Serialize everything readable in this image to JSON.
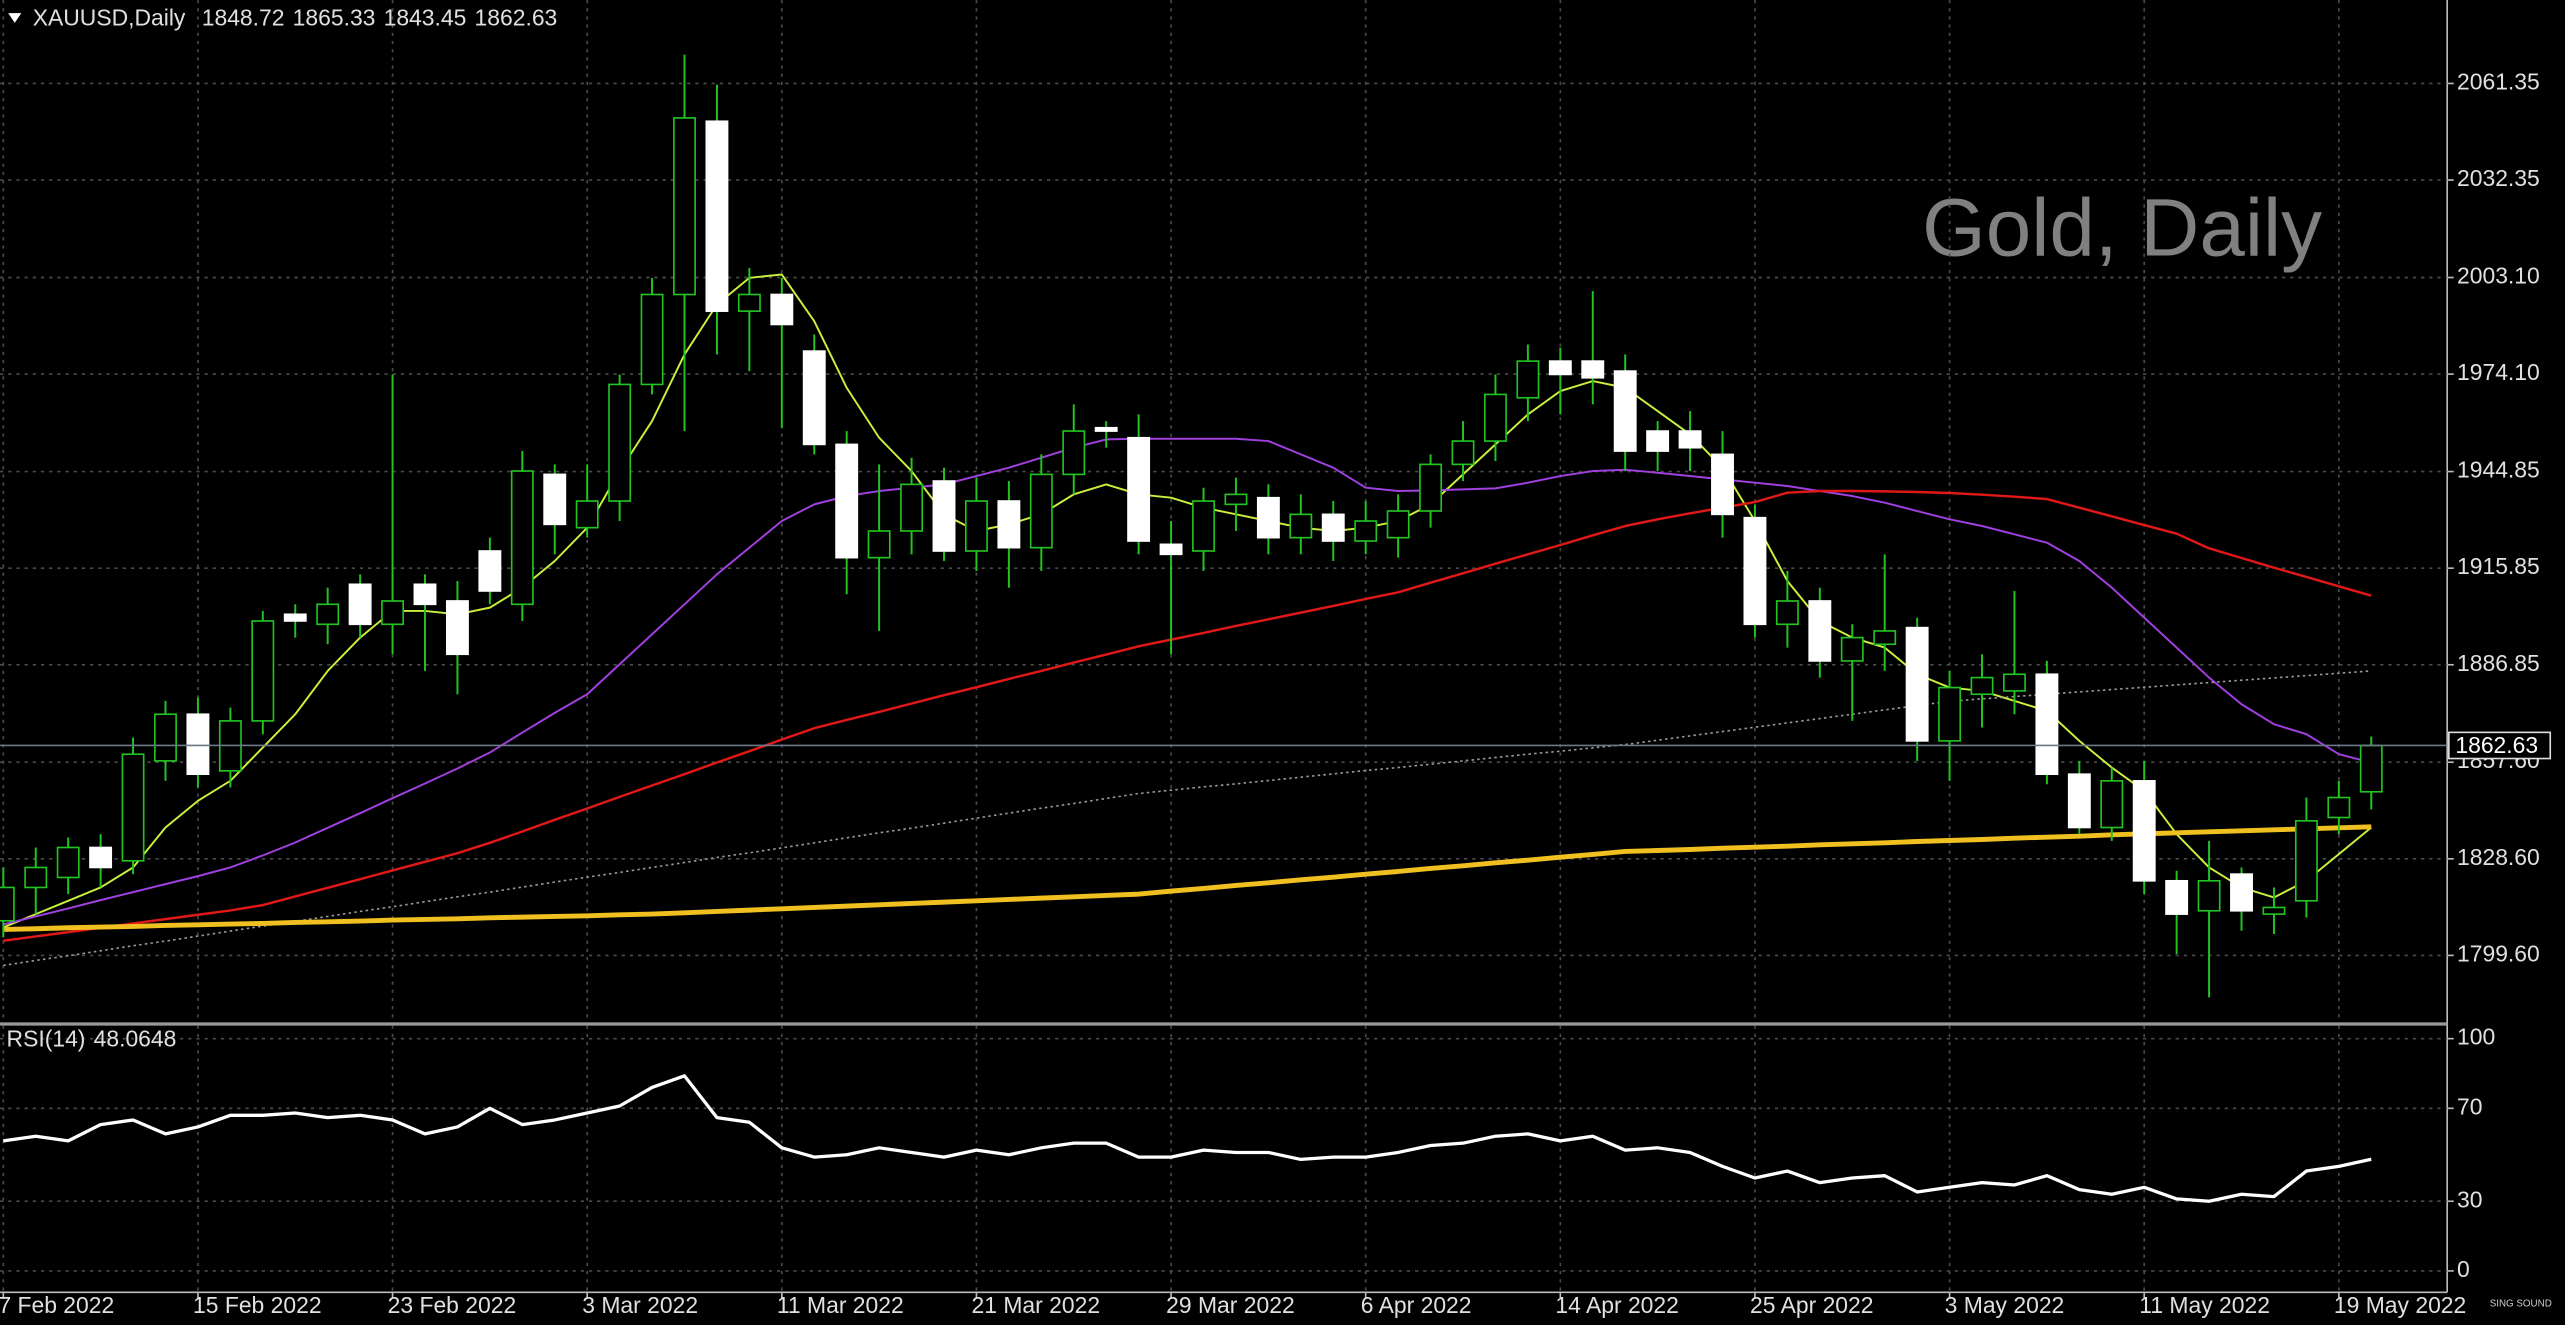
{
  "chart_data": [
    {
      "type": "candlestick",
      "title": "XAUUSD,Daily",
      "watermark": "Gold, Daily",
      "categories": [
        "7 Feb 2022",
        null,
        null,
        null,
        null,
        null,
        "15 Feb 2022",
        null,
        null,
        null,
        null,
        null,
        "23 Feb 2022",
        null,
        null,
        null,
        null,
        null,
        "3 Mar 2022",
        null,
        null,
        null,
        null,
        null,
        "11 Mar 2022",
        null,
        null,
        null,
        null,
        null,
        "21 Mar 2022",
        null,
        null,
        null,
        null,
        null,
        "29 Mar 2022",
        null,
        null,
        null,
        null,
        null,
        "6 Apr 2022",
        null,
        null,
        null,
        null,
        null,
        "14 Apr 2022",
        null,
        null,
        null,
        null,
        null,
        "25 Apr 2022",
        null,
        null,
        null,
        null,
        null,
        "3 May 2022",
        null,
        null,
        null,
        null,
        null,
        "11 May 2022",
        null,
        null,
        null,
        null,
        null,
        "19 May 2022",
        null
      ],
      "open": [
        1810,
        1820,
        1823,
        1832,
        1828,
        1858,
        1872,
        1855,
        1870,
        1902,
        1899,
        1911,
        1899,
        1911,
        1906,
        1921,
        1905,
        1944,
        1928,
        1936,
        1971,
        1998,
        2050,
        1993,
        1998,
        1981,
        1953,
        1919,
        1927,
        1942,
        1921,
        1936,
        1922,
        1944,
        1958,
        1955,
        1923,
        1921,
        1935,
        1937,
        1925,
        1932,
        1924,
        1925,
        1933,
        1947,
        1954,
        1967,
        1978,
        1978,
        1975,
        1957,
        1957,
        1950,
        1931,
        1899,
        1906,
        1888,
        1893,
        1898,
        1864,
        1878,
        1879,
        1884,
        1854,
        1838,
        1852,
        1822,
        1813,
        1824,
        1812,
        1816,
        1841,
        1848.72
      ],
      "high": [
        1826,
        1832,
        1835,
        1836,
        1865,
        1876,
        1877,
        1874,
        1903,
        1905,
        1910,
        1914,
        1974,
        1914,
        1912,
        1925,
        1951,
        1947,
        1947,
        1974,
        2003,
        2070,
        2061,
        2006,
        2003,
        1986,
        1957,
        1947,
        1949,
        1946,
        1943,
        1942,
        1950,
        1965,
        1960,
        1962,
        1930,
        1940,
        1943,
        1941,
        1938,
        1936,
        1936,
        1938,
        1950,
        1960,
        1974,
        1983,
        1982,
        1999,
        1980,
        1960,
        1963,
        1957,
        1935,
        1915,
        1910,
        1899,
        1920,
        1901,
        1885,
        1890,
        1909,
        1888,
        1858,
        1856,
        1858,
        1825,
        1834,
        1826,
        1820,
        1847,
        1852,
        1865.33
      ],
      "low": [
        1805,
        1812,
        1818,
        1820,
        1824,
        1852,
        1850,
        1850,
        1866,
        1895,
        1893,
        1895,
        1890,
        1885,
        1878,
        1905,
        1900,
        1920,
        1925,
        1930,
        1968,
        1957,
        1980,
        1975,
        1958,
        1950,
        1908,
        1897,
        1920,
        1918,
        1915,
        1910,
        1915,
        1938,
        1952,
        1920,
        1890,
        1915,
        1927,
        1920,
        1920,
        1918,
        1920,
        1919,
        1928,
        1942,
        1948,
        1960,
        1962,
        1965,
        1945,
        1945,
        1945,
        1925,
        1895,
        1892,
        1883,
        1870,
        1885,
        1858,
        1852,
        1868,
        1872,
        1851,
        1836,
        1834,
        1818,
        1800,
        1787,
        1807,
        1806,
        1811,
        1836,
        1843.45
      ],
      "close": [
        1820,
        1826,
        1832,
        1826,
        1860,
        1872,
        1854,
        1870,
        1900,
        1900,
        1905,
        1899,
        1906,
        1905,
        1890,
        1909,
        1945,
        1929,
        1936,
        1971,
        1998,
        2051,
        1993,
        1998,
        1989,
        1953,
        1919,
        1927,
        1941,
        1921,
        1936,
        1922,
        1944,
        1957,
        1957,
        1924,
        1920,
        1936,
        1938,
        1925,
        1932,
        1924,
        1930,
        1933,
        1947,
        1954,
        1968,
        1978,
        1974,
        1973,
        1951,
        1951,
        1952,
        1932,
        1899,
        1906,
        1888,
        1895,
        1897,
        1864,
        1880,
        1883,
        1884,
        1854,
        1838,
        1852,
        1822,
        1812,
        1822,
        1813,
        1814,
        1840,
        1847,
        1862.63
      ],
      "up_color": "#000000",
      "down_color": "#ffffff",
      "wick_color": "#21c421",
      "series": [
        {
          "color": "#c8f03c",
          "width": 1.2,
          "values": [
            1808,
            1812,
            1816,
            1820,
            1826,
            1838,
            1846,
            1852,
            1862,
            1872,
            1885,
            1895,
            1903,
            1903,
            1902,
            1904,
            1910,
            1918,
            1928,
            1945,
            1960,
            1980,
            1995,
            2003,
            2004,
            1990,
            1970,
            1955,
            1945,
            1932,
            1927,
            1929,
            1932,
            1938,
            1941,
            1938,
            1937,
            1934,
            1932,
            1930,
            1928,
            1927,
            1928,
            1930,
            1935,
            1944,
            1953,
            1962,
            1969,
            1972,
            1970,
            1963,
            1956,
            1946,
            1930,
            1912,
            1900,
            1895,
            1892,
            1884,
            1880,
            1879,
            1876,
            1873,
            1864,
            1856,
            1849,
            1836,
            1826,
            1820,
            1817,
            1822,
            1830,
            1838
          ]
        },
        {
          "color": "#a040e0",
          "width": 1.2,
          "values": [
            1808.9,
            1811.3,
            1813.7,
            1816.2,
            1818.6,
            1821.0,
            1823.4,
            1826.0,
            1829.6,
            1833.5,
            1837.9,
            1842.3,
            1846.8,
            1851.2,
            1855.7,
            1860.5,
            1866.5,
            1872.4,
            1878.0,
            1887.0,
            1896.0,
            1905.0,
            1914.0,
            1922.0,
            1930.0,
            1935.0,
            1937.5,
            1939.0,
            1940.0,
            1941.0,
            1943.5,
            1946.0,
            1949.0,
            1952.0,
            1954.5,
            1954.7,
            1954.7,
            1954.7,
            1954.7,
            1954.0,
            1950.0,
            1946.0,
            1940.0,
            1939.0,
            1939.2,
            1939.5,
            1939.8,
            1941.5,
            1943.5,
            1945.0,
            1945.4,
            1944.5,
            1943.5,
            1942.5,
            1941.5,
            1940.5,
            1939.0,
            1937.5,
            1935.5,
            1933.0,
            1930.5,
            1928.5,
            1926.0,
            1923.5,
            1918.0,
            1910.0,
            1901.0,
            1892.0,
            1883.0,
            1875.0,
            1869.0,
            1866.0,
            1860.0,
            1857.5
          ]
        },
        {
          "color": "#e01818",
          "width": 1.5,
          "values": [
            1804.0,
            1805.3,
            1806.6,
            1807.9,
            1809.2,
            1810.5,
            1811.8,
            1813.1,
            1814.7,
            1817.3,
            1819.9,
            1822.5,
            1825.1,
            1827.7,
            1830.3,
            1833.4,
            1836.8,
            1840.3,
            1843.7,
            1847.2,
            1850.6,
            1854.0,
            1857.5,
            1860.9,
            1864.4,
            1867.8,
            1870.3,
            1872.7,
            1875.2,
            1877.7,
            1880.1,
            1882.6,
            1885.0,
            1887.5,
            1889.9,
            1892.4,
            1894.4,
            1896.4,
            1898.5,
            1900.5,
            1902.5,
            1904.5,
            1906.6,
            1908.6,
            1911.5,
            1914.3,
            1917.2,
            1920.0,
            1922.8,
            1925.7,
            1928.5,
            1930.5,
            1932.3,
            1934.0,
            1935.7,
            1938.5,
            1939.0,
            1939.0,
            1938.9,
            1938.7,
            1938.4,
            1937.9,
            1937.3,
            1936.6,
            1934.0,
            1931.4,
            1928.8,
            1926.2,
            1921.8,
            1918.9,
            1916.0,
            1913.2,
            1910.4,
            1907.6
          ]
        },
        {
          "color": "#9a9a9a",
          "width": 1,
          "dash": true,
          "values": [
            1796.6,
            1798.1,
            1799.5,
            1801.0,
            1802.5,
            1803.9,
            1805.4,
            1806.9,
            1808.4,
            1809.8,
            1811.3,
            1812.8,
            1814.2,
            1815.7,
            1817.2,
            1818.6,
            1820.1,
            1821.6,
            1823.1,
            1824.5,
            1826.0,
            1827.5,
            1829.0,
            1830.4,
            1831.9,
            1833.4,
            1834.9,
            1836.4,
            1837.8,
            1839.3,
            1840.8,
            1842.3,
            1843.8,
            1845.2,
            1846.7,
            1848.2,
            1849.2,
            1850.2,
            1851.1,
            1852.1,
            1853.1,
            1854.1,
            1855.1,
            1856.0,
            1857.0,
            1858.0,
            1859.0,
            1860.0,
            1860.9,
            1861.9,
            1862.9,
            1864.2,
            1865.5,
            1866.8,
            1868.1,
            1869.4,
            1870.7,
            1872.0,
            1873.3,
            1874.6,
            1875.9,
            1876.6,
            1877.3,
            1878.0,
            1878.7,
            1879.4,
            1880.1,
            1880.8,
            1881.5,
            1882.2,
            1882.9,
            1883.6,
            1884.3,
            1885.0
          ]
        },
        {
          "color": "#f0c020",
          "width": 3,
          "values": [
            1807.4,
            1807.6,
            1807.9,
            1808.1,
            1808.3,
            1808.6,
            1808.8,
            1809.0,
            1809.2,
            1809.5,
            1809.7,
            1809.9,
            1810.2,
            1810.4,
            1810.6,
            1810.9,
            1811.1,
            1811.3,
            1811.5,
            1811.8,
            1812.0,
            1812.4,
            1812.8,
            1813.2,
            1813.6,
            1814.0,
            1814.4,
            1814.8,
            1815.2,
            1815.6,
            1816.0,
            1816.4,
            1816.8,
            1817.2,
            1817.6,
            1818.0,
            1818.9,
            1819.7,
            1820.6,
            1821.4,
            1822.3,
            1823.1,
            1824.0,
            1824.8,
            1825.7,
            1826.5,
            1827.4,
            1828.2,
            1829.1,
            1829.9,
            1830.8,
            1831.1,
            1831.4,
            1831.8,
            1832.1,
            1832.4,
            1832.8,
            1833.1,
            1833.4,
            1833.8,
            1834.1,
            1834.4,
            1834.8,
            1835.1,
            1835.4,
            1835.8,
            1836.1,
            1836.4,
            1836.7,
            1837.0,
            1837.3,
            1837.6,
            1837.9,
            1838.2
          ]
        }
      ],
      "ylim": [
        1779.5,
        2086.4
      ],
      "yticks": [
        2061.35,
        2032.35,
        {
          "value": 2003.1,
          "label": "2003.10"
        },
        {
          "value": 1974.1,
          "label": "1974.10"
        },
        1944.85,
        1915.85,
        1886.85,
        {
          "value": 1857.6,
          "label": "1857.60"
        },
        {
          "value": 1828.6,
          "label": "1828.60"
        },
        {
          "value": 1799.6,
          "label": "1799.60"
        }
      ],
      "grid": true
    },
    {
      "type": "line",
      "title": "RSI(14)",
      "color": "#ffffff",
      "values": [
        56,
        58,
        56,
        63,
        65,
        59,
        62,
        67,
        67,
        68,
        66,
        67,
        65,
        59,
        62,
        70,
        63,
        65,
        68,
        71,
        79,
        84,
        66,
        64,
        53,
        49,
        50,
        53,
        51,
        49,
        52,
        50,
        53,
        55,
        55,
        49,
        49,
        52,
        51,
        51,
        48,
        49,
        49,
        51,
        54,
        55,
        58,
        59,
        56,
        58,
        52,
        53,
        51,
        45,
        40,
        43,
        38,
        40,
        41,
        34,
        36,
        38,
        37,
        41,
        35,
        33,
        36,
        31,
        30,
        33,
        32,
        43,
        45,
        48.0648
      ],
      "ylim": [
        -9.2,
        105.6
      ],
      "yticks": [
        100,
        70,
        30,
        0
      ],
      "grid": true
    }
  ],
  "logo": "SING SOUND"
}
